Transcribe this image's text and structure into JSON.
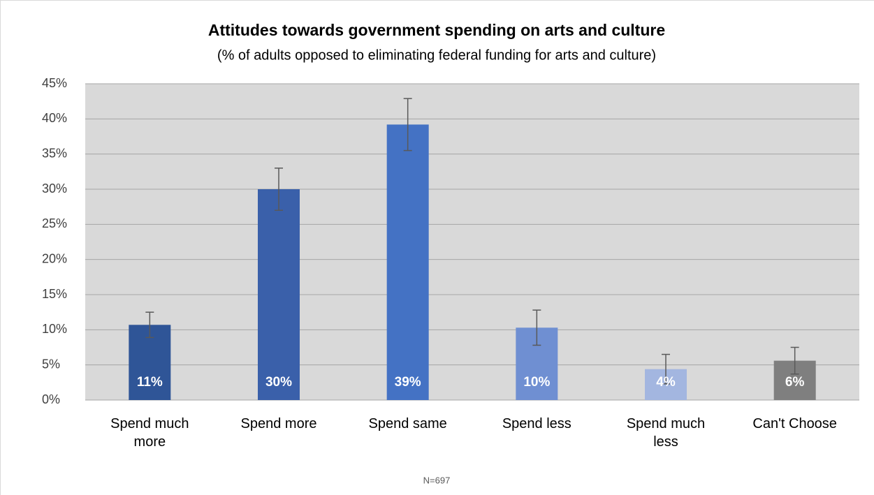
{
  "chart_data": {
    "type": "bar",
    "title": "Attitudes towards government spending on arts and culture",
    "subtitle": "(% of adults opposed to eliminating federal funding for arts and culture)",
    "categories": [
      "Spend much more",
      "Spend more",
      "Spend same",
      "Spend less",
      "Spend much less",
      "Can't Choose"
    ],
    "values": [
      10.7,
      30,
      39.2,
      10.3,
      4.4,
      5.6
    ],
    "value_labels": [
      "11%",
      "30%",
      "39%",
      "10%",
      "4%",
      "6%"
    ],
    "errors": [
      1.8,
      3,
      3.7,
      2.5,
      2.1,
      1.9
    ],
    "colors": [
      "#2f5597",
      "#3a60aa",
      "#4472c4",
      "#6f8fd2",
      "#a3b6e0",
      "#7f7f7f"
    ],
    "ylim": [
      0,
      45
    ],
    "yticks": [
      {
        "value": 0,
        "label": "0%"
      },
      {
        "value": 5,
        "label": "5%"
      },
      {
        "value": 10,
        "label": "10%"
      },
      {
        "value": 15,
        "label": "15%"
      },
      {
        "value": 20,
        "label": "20%"
      },
      {
        "value": 25,
        "label": "25%"
      },
      {
        "value": 30,
        "label": "30%"
      },
      {
        "value": 35,
        "label": "35%"
      },
      {
        "value": 40,
        "label": "40%"
      },
      {
        "value": 45,
        "label": "45%"
      }
    ],
    "grid": true,
    "note": "N=697"
  }
}
